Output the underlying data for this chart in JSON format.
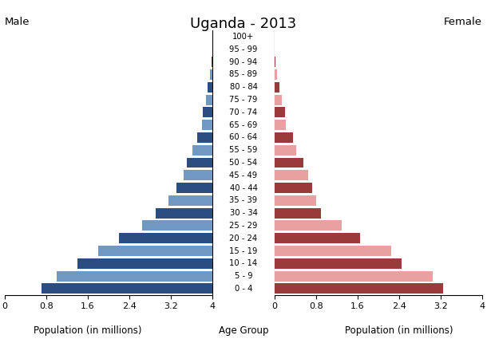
{
  "title": "Uganda - 2013",
  "age_groups": [
    "0 - 4",
    "5 - 9",
    "10 - 14",
    "15 - 19",
    "20 - 24",
    "25 - 29",
    "30 - 34",
    "35 - 39",
    "40 - 44",
    "45 - 49",
    "50 - 54",
    "55 - 59",
    "60 - 64",
    "65 - 69",
    "70 - 74",
    "75 - 79",
    "80 - 84",
    "85 - 89",
    "90 - 94",
    "95 - 99",
    "100+"
  ],
  "male_values": [
    3.3,
    3.0,
    2.6,
    2.2,
    1.8,
    1.35,
    1.1,
    0.85,
    0.7,
    0.55,
    0.5,
    0.38,
    0.3,
    0.2,
    0.18,
    0.12,
    0.09,
    0.04,
    0.01,
    0.005,
    0.002
  ],
  "female_values": [
    3.25,
    3.05,
    2.45,
    2.25,
    1.65,
    1.3,
    0.9,
    0.8,
    0.72,
    0.65,
    0.55,
    0.42,
    0.35,
    0.22,
    0.2,
    0.14,
    0.1,
    0.05,
    0.015,
    0.005,
    0.002
  ],
  "male_colors_dark": "#2c4d7f",
  "male_colors_light": "#7098c0",
  "female_colors_dark": "#9b3a3a",
  "female_colors_light": "#e8a0a0",
  "xlim": 4.0,
  "xlabel_left": "Population (in millions)",
  "xlabel_center": "Age Group",
  "xlabel_right": "Population (in millions)",
  "label_male": "Male",
  "label_female": "Female",
  "tick_positions": [
    0,
    0.8,
    1.6,
    2.4,
    3.2,
    4.0
  ],
  "tick_labels_male": [
    "4",
    "3.2",
    "2.4",
    "1.6",
    "0.8",
    "0"
  ],
  "tick_labels_female": [
    "0",
    "0.8",
    "1.6",
    "2.4",
    "3.2",
    "4"
  ]
}
